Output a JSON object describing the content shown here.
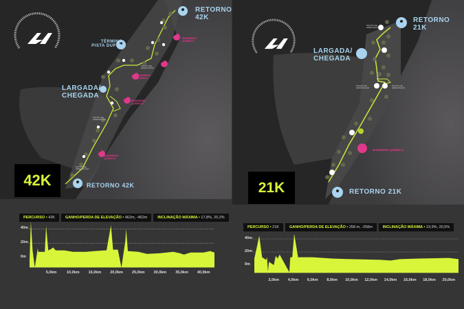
{
  "colors": {
    "route": "#cfe83a",
    "accent": "#d8f53a",
    "marker_blue": "#a9d4ef",
    "pink": "#e0388a",
    "panel_bg": "#353535"
  },
  "logo_text": "MARATONA INTERNACIONAL DO PARANÁ",
  "map_42k": {
    "badge": "42K",
    "retorno_top": "RETORNO 42K",
    "termino": "TÉRMINO PISTA DUPLA",
    "largada": "LARGADA/ CHEGADA",
    "retorno_bottom": "RETORNO 42K",
    "banheiro": "BANHEIRO QUÍMICO",
    "hidratacao": "PONTO DE HIDRATAÇÃO"
  },
  "map_21k": {
    "badge": "21K",
    "retorno_top": "RETORNO 21K",
    "largada": "LARGADA/ CHEGADA",
    "retorno_bottom": "RETORNO 21K",
    "banheiro": "BANHEIRO QUÍMICO",
    "hidratacao": "PONTO DE HIDRATAÇÃO"
  },
  "chart_data": [
    {
      "type": "area",
      "header": {
        "percurso_label": "PERCURSO",
        "percurso_value": "42K",
        "ganho_label": "GANHO/PERDA DE ELEVAÇÃO",
        "ganho_value": "462m, -462m",
        "inclinacao_label": "INCLINAÇÃO MÁXIMA",
        "inclinacao_value": "17,8%, 20,2%"
      },
      "y_ticks": [
        "40m",
        "20m",
        "0m"
      ],
      "y_tick_values": [
        40,
        20,
        0
      ],
      "x_ticks": [
        "5,0km",
        "10,0km",
        "15,0km",
        "20,0km",
        "25,0km",
        "30,0km",
        "35,0km",
        "40,0km"
      ],
      "x_tick_values": [
        5,
        10,
        15,
        20,
        25,
        30,
        35,
        40
      ],
      "xlim": [
        0,
        42.5
      ],
      "ylim": [
        -14,
        50
      ],
      "grid": true,
      "points": [
        [
          0,
          -4
        ],
        [
          0.3,
          51
        ],
        [
          0.7,
          10
        ],
        [
          1.2,
          -14
        ],
        [
          1.9,
          13
        ],
        [
          2,
          8
        ],
        [
          3.5,
          8
        ],
        [
          3.8,
          44
        ],
        [
          4.3,
          10
        ],
        [
          5,
          12
        ],
        [
          5.4,
          14
        ],
        [
          6,
          10
        ],
        [
          8,
          10
        ],
        [
          10,
          8
        ],
        [
          13,
          8
        ],
        [
          15,
          9
        ],
        [
          17.3,
          10
        ],
        [
          17.7,
          10
        ],
        [
          18.7,
          45
        ],
        [
          19.2,
          11
        ],
        [
          20.3,
          11
        ],
        [
          21.1,
          -14
        ],
        [
          22,
          22
        ],
        [
          22.2,
          40
        ],
        [
          22.6,
          9
        ],
        [
          25,
          8
        ],
        [
          27,
          5
        ],
        [
          30,
          6
        ],
        [
          33,
          8
        ],
        [
          34.5,
          6
        ],
        [
          35.5,
          4
        ],
        [
          37,
          7
        ],
        [
          40,
          7
        ],
        [
          41.5,
          9
        ],
        [
          42.5,
          7
        ]
      ]
    },
    {
      "type": "area",
      "header": {
        "percurso_label": "PERCURSO",
        "percurso_value": "21K",
        "ganho_label": "GANHO/PERDA DE ELEVAÇÃO",
        "ganho_value": "258 m, -258m",
        "inclinacao_label": "INCLINAÇÃO MÁXIMA",
        "inclinacao_value": "19,9%, 20,5%"
      },
      "y_ticks": [
        "40m",
        "20m",
        "0m"
      ],
      "y_tick_values": [
        40,
        20,
        0
      ],
      "x_ticks": [
        "2,0km",
        "4,0km",
        "6,0km",
        "8,0km",
        "10,0km",
        "12,0km",
        "14,0km",
        "16,0km",
        "18,0km",
        "20,0km"
      ],
      "x_tick_values": [
        2,
        4,
        6,
        8,
        10,
        12,
        14,
        16,
        18,
        20
      ],
      "xlim": [
        0,
        21
      ],
      "ylim": [
        -12,
        48
      ],
      "grid": true,
      "points": [
        [
          0,
          10
        ],
        [
          0.3,
          30
        ],
        [
          0.5,
          45
        ],
        [
          0.8,
          12
        ],
        [
          1.2,
          8
        ],
        [
          1.3,
          12
        ],
        [
          1.4,
          -10
        ],
        [
          1.5,
          5
        ],
        [
          2,
          0
        ],
        [
          2.2,
          14
        ],
        [
          2.4,
          10
        ],
        [
          2.6,
          16
        ],
        [
          3.6,
          -11
        ],
        [
          3.7,
          12
        ],
        [
          3.9,
          12
        ],
        [
          4.1,
          48
        ],
        [
          4.5,
          12
        ],
        [
          6,
          12
        ],
        [
          8,
          10
        ],
        [
          10,
          9
        ],
        [
          13,
          8
        ],
        [
          14,
          7
        ],
        [
          15,
          9
        ],
        [
          17,
          10
        ],
        [
          20,
          11
        ],
        [
          21,
          9
        ]
      ]
    }
  ]
}
